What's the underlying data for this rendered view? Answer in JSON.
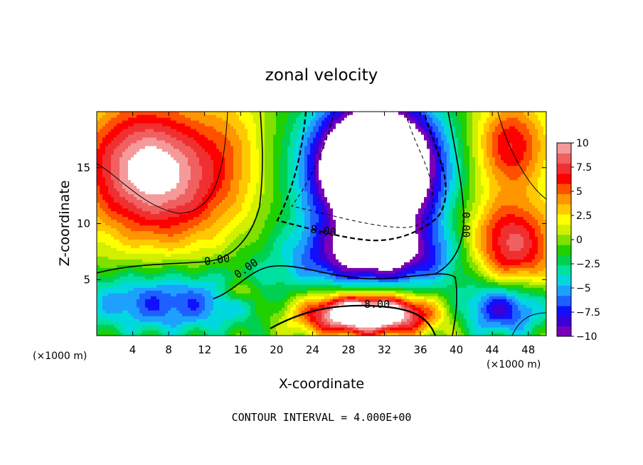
{
  "chart_data": {
    "type": "heatmap",
    "title": "zonal velocity",
    "xlabel": "X-coordinate",
    "ylabel": "Z-coordinate",
    "x_unit": "(×1000 m)",
    "xlim": [
      0,
      50
    ],
    "ylim": [
      0,
      20
    ],
    "x_ticks": [
      4,
      8,
      12,
      16,
      20,
      24,
      28,
      32,
      36,
      40,
      44,
      48
    ],
    "y_ticks": [
      5,
      10,
      15
    ],
    "colorbar": {
      "range": [
        -10,
        10
      ],
      "tick_values": [
        10,
        7.5,
        5,
        2.5,
        0,
        -2.5,
        -5,
        -7.5,
        -10
      ],
      "tick_labels": [
        "10",
        "7.5",
        "5",
        "2.5",
        "0",
        "−2.5",
        "−5",
        "−7.5",
        "−10"
      ],
      "colors": [
        "#7a00b8",
        "#3a00d8",
        "#1010ff",
        "#1e60ff",
        "#1ea0ff",
        "#00d8e0",
        "#00e0a0",
        "#00d050",
        "#20d000",
        "#80e000",
        "#d0f000",
        "#ffff00",
        "#ffc800",
        "#ff9600",
        "#ff5000",
        "#ff0000",
        "#f03030",
        "#f06060",
        "#f59a9a"
      ]
    },
    "contour_labels": [
      "0.00",
      "0.00",
      "8.00",
      "8.00",
      "0.00"
    ],
    "footer": "CONTOUR INTERVAL = 4.000E+00"
  }
}
